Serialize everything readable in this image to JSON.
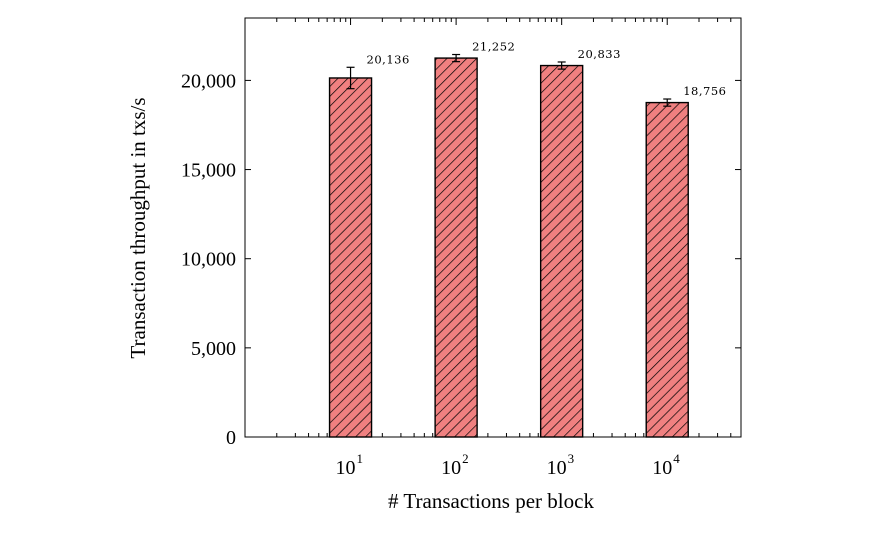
{
  "chart_data": {
    "type": "bar",
    "categories": [
      "10^1",
      "10^2",
      "10^3",
      "10^4"
    ],
    "tick_labels": [
      {
        "base": "10",
        "exp": "1"
      },
      {
        "base": "10",
        "exp": "2"
      },
      {
        "base": "10",
        "exp": "3"
      },
      {
        "base": "10",
        "exp": "4"
      }
    ],
    "x": [
      10,
      100,
      1000,
      10000
    ],
    "values": [
      20136,
      21252,
      20833,
      18756
    ],
    "value_labels": [
      "20,136",
      "21,252",
      "20,833",
      "18,756"
    ],
    "error": [
      600,
      200,
      200,
      200
    ],
    "xlabel": "# Transactions per block",
    "ylabel": "Transaction throughput in txs/s",
    "xscale": "log",
    "xlim": [
      1,
      50000
    ],
    "ylim": [
      0,
      23500
    ],
    "yticks": [
      0,
      5000,
      10000,
      15000,
      20000
    ],
    "ytick_labels": [
      "0",
      "5,000",
      "10,000",
      "15,000",
      "20,000"
    ],
    "bar_fill": "#f08080",
    "bar_pattern": "diagonal-hatch",
    "hatch_color": "#000000",
    "grid": false
  }
}
